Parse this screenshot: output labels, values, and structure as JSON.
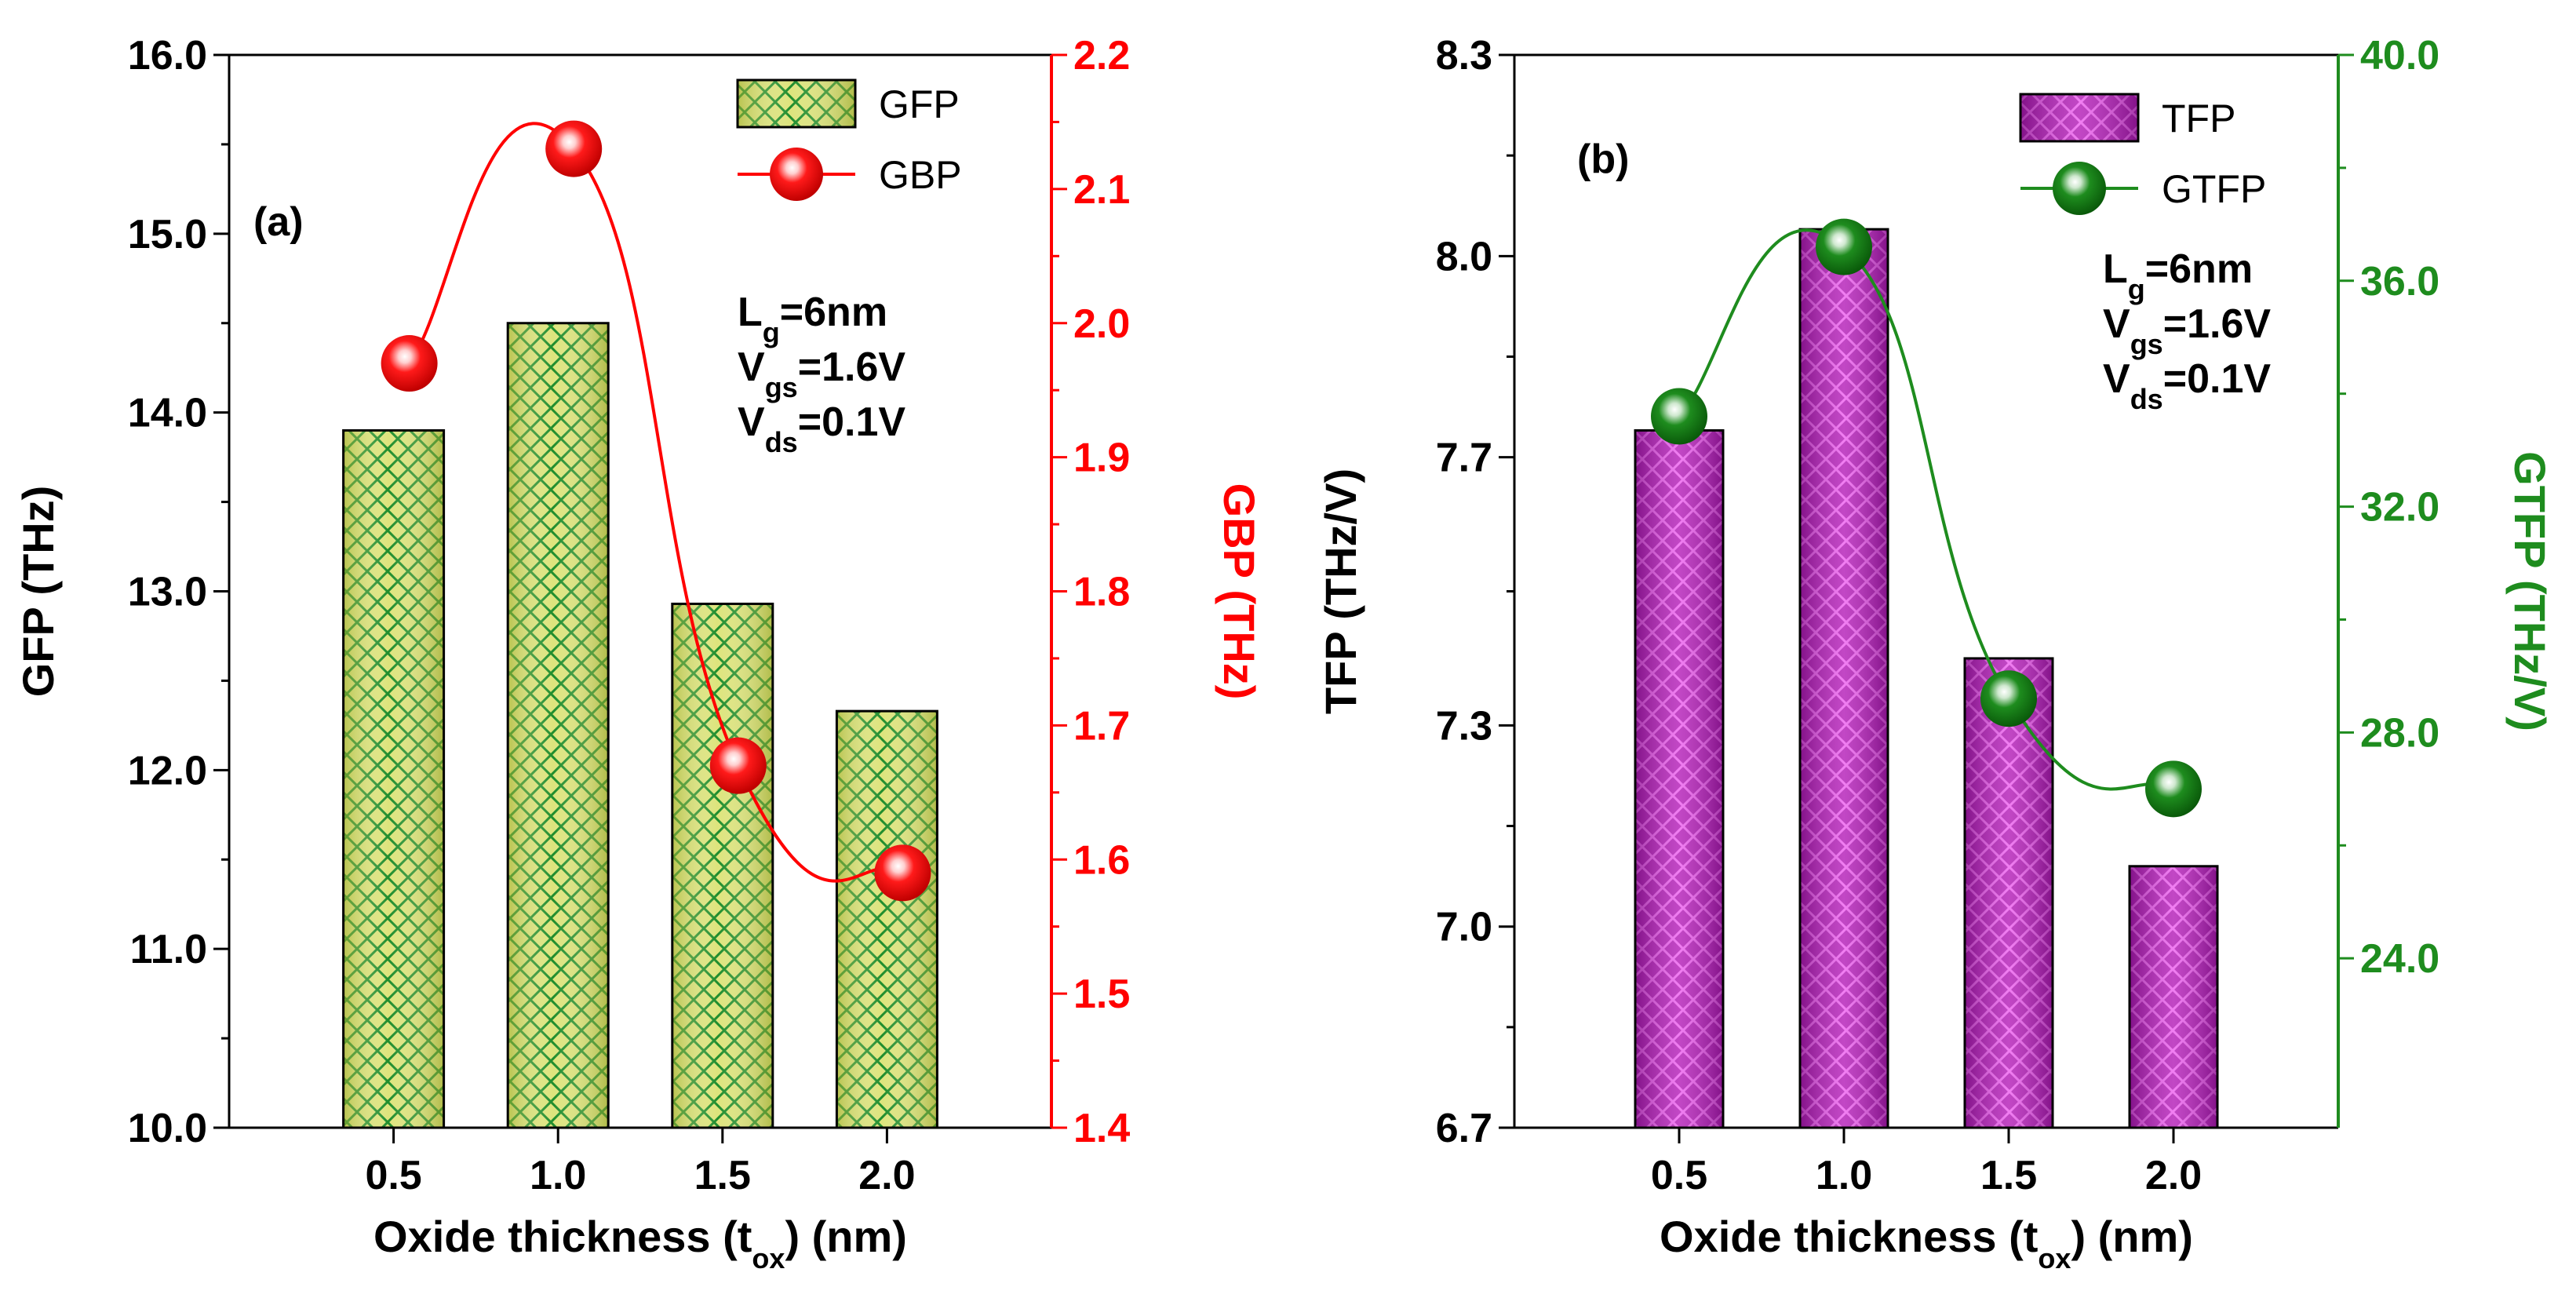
{
  "chart_data": [
    {
      "type": "bar",
      "panel_label": "(a)",
      "xlabel_main": "Oxide thickness (t",
      "xlabel_sub": "ox",
      "xlabel_tail": ") (nm)",
      "ylabel": "GFP (THz)",
      "y2label": "GBP (THz)",
      "categories": [
        "0.5",
        "1.0",
        "1.5",
        "2.0"
      ],
      "x": [
        0.5,
        1.0,
        1.5,
        2.0
      ],
      "ylim": [
        10.0,
        16.0
      ],
      "y2lim": [
        1.4,
        2.2
      ],
      "yticks": [
        "10.0",
        "11.0",
        "12.0",
        "13.0",
        "14.0",
        "15.0",
        "16.0"
      ],
      "y2ticks": [
        "1.4",
        "1.5",
        "1.6",
        "1.7",
        "1.8",
        "1.9",
        "2.0",
        "2.1",
        "2.2"
      ],
      "series": [
        {
          "name": "GFP",
          "kind": "bar",
          "axis": "left",
          "values": [
            13.9,
            14.5,
            12.93,
            12.33
          ]
        },
        {
          "name": "GBP",
          "kind": "line+marker",
          "axis": "right",
          "values": [
            1.97,
            2.13,
            1.67,
            1.59
          ]
        }
      ],
      "annotations": [
        {
          "main": "L",
          "sub": "g",
          "tail": "=6nm"
        },
        {
          "main": "V",
          "sub": "gs",
          "tail": "=1.6V"
        },
        {
          "main": "V",
          "sub": "ds",
          "tail": "=0.1V"
        }
      ],
      "legend_position": "top-right",
      "colors": {
        "bar_fill": "#d9e27a",
        "bar_hatch": "#1a8a2a",
        "line": "#ff0000",
        "right_axis": "#ff0000"
      }
    },
    {
      "type": "bar",
      "panel_label": "(b)",
      "xlabel_main": "Oxide thickness (t",
      "xlabel_sub": "ox",
      "xlabel_tail": ") (nm)",
      "ylabel": "TFP (THz/V)",
      "y2label": "GTFP (THz/V)",
      "categories": [
        "0.5",
        "1.0",
        "1.5",
        "2.0"
      ],
      "x": [
        0.5,
        1.0,
        1.5,
        2.0
      ],
      "ylim": [
        6.7,
        8.3
      ],
      "y2lim": [
        21.0,
        40.0
      ],
      "yticks": [
        "6.7",
        "7.0",
        "7.3",
        "7.7",
        "8.0",
        "8.3"
      ],
      "ytick_values": [
        6.7,
        7.0,
        7.3,
        7.7,
        8.0,
        8.3
      ],
      "y2ticks": [
        "24.0",
        "28.0",
        "32.0",
        "36.0",
        "40.0"
      ],
      "y2tick_values": [
        24.0,
        28.0,
        32.0,
        36.0,
        40.0
      ],
      "series": [
        {
          "name": "TFP",
          "kind": "bar",
          "axis": "left",
          "values": [
            7.74,
            8.04,
            7.4,
            7.09
          ]
        },
        {
          "name": "GTFP",
          "kind": "line+marker",
          "axis": "right",
          "values": [
            33.6,
            36.6,
            28.6,
            27.0
          ]
        }
      ],
      "annotations": [
        {
          "main": "L",
          "sub": "g",
          "tail": "=6nm"
        },
        {
          "main": "V",
          "sub": "gs",
          "tail": "=1.6V"
        },
        {
          "main": "V",
          "sub": "ds",
          "tail": "=0.1V"
        }
      ],
      "legend_position": "top-right",
      "colors": {
        "bar_fill": "#a21ca8",
        "bar_hatch": "#e870ea",
        "line": "#1e8c1e",
        "right_axis": "#1e8c1e"
      }
    }
  ]
}
